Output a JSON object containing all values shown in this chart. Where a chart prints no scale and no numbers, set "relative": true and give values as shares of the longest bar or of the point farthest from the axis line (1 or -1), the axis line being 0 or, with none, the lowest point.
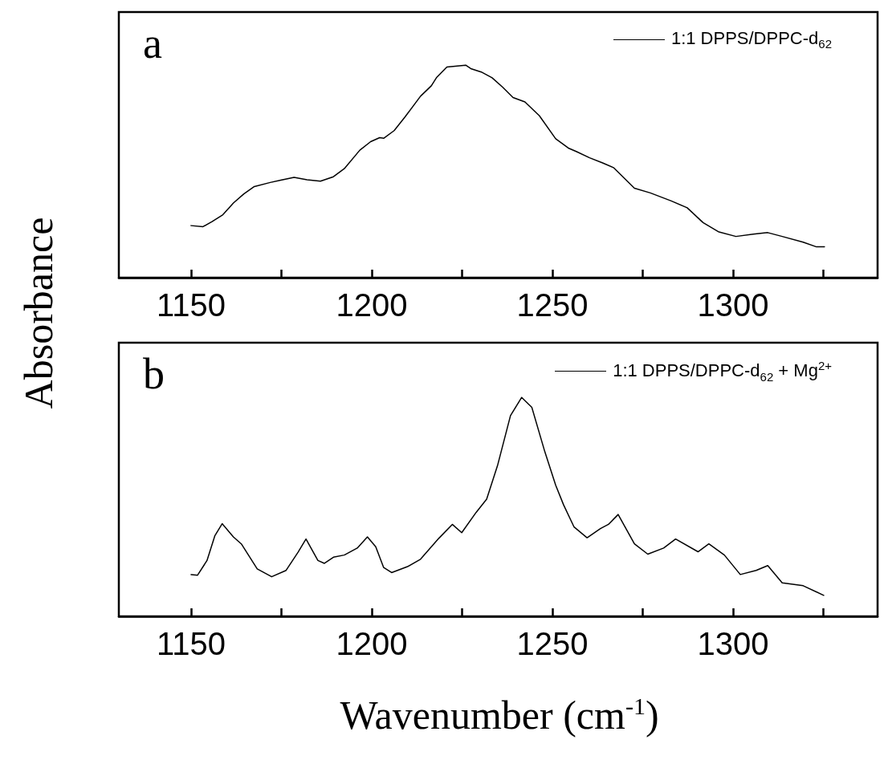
{
  "chart_data": [
    {
      "type": "line",
      "relative": true,
      "ylabel": "Absorbance",
      "annotations": [
        "a"
      ],
      "legend": "top right",
      "marker": "none",
      "line_style": "solid",
      "grid": false,
      "xlim": [
        1130,
        1340
      ],
      "xticks": [
        1150,
        {
          "value": 1175,
          "label": null
        },
        1200,
        {
          "value": 1225,
          "label": null
        },
        1250,
        {
          "value": 1275,
          "label": null
        },
        1300,
        {
          "value": 1325,
          "label": null
        }
      ],
      "series": [
        {
          "name": "1:1 DPPS/DPPC-d$_{62}$",
          "color": "#000000",
          "x": [
            1150,
            1153.3,
            1155.8,
            1158.8,
            1161.7,
            1164.6,
            1167.5,
            1171.9,
            1174.8,
            1178.5,
            1182.1,
            1185.8,
            1189.4,
            1192.4,
            1196.7,
            1199.7,
            1202.2,
            1203.3,
            1206.2,
            1209.2,
            1213.5,
            1216.5,
            1217.9,
            1220.8,
            1226.0,
            1227.4,
            1230.3,
            1233.3,
            1236.2,
            1239.1,
            1242.4,
            1246.4,
            1250.9,
            1254.4,
            1256.6,
            1260.3,
            1263.9,
            1266.9,
            1272.7,
            1277.1,
            1282.9,
            1287.3,
            1291.7,
            1296.1,
            1300.8,
            1305.6,
            1309.6,
            1313.6,
            1319.4,
            1323.1,
            1325.3
          ],
          "values": [
            0.245,
            0.24,
            0.264,
            0.296,
            0.351,
            0.394,
            0.429,
            0.448,
            0.459,
            0.472,
            0.461,
            0.454,
            0.475,
            0.513,
            0.6,
            0.64,
            0.659,
            0.656,
            0.692,
            0.756,
            0.854,
            0.903,
            0.941,
            0.991,
            1.0,
            0.984,
            0.968,
            0.941,
            0.897,
            0.848,
            0.827,
            0.762,
            0.654,
            0.61,
            0.594,
            0.564,
            0.54,
            0.518,
            0.421,
            0.399,
            0.361,
            0.329,
            0.259,
            0.215,
            0.194,
            0.205,
            0.212,
            0.194,
            0.167,
            0.145,
            0.145
          ]
        }
      ]
    },
    {
      "type": "line",
      "relative": true,
      "xlabel": "Wavenumber (cm$^{-1}$)",
      "annotations": [
        "b"
      ],
      "legend": "top right",
      "marker": "none",
      "line_style": "solid",
      "grid": false,
      "xlim": [
        1130,
        1340
      ],
      "xticks": [
        1150,
        {
          "value": 1175,
          "label": null
        },
        1200,
        {
          "value": 1225,
          "label": null
        },
        1250,
        {
          "value": 1275,
          "label": null
        },
        1300,
        {
          "value": 1325,
          "label": null
        }
      ],
      "series": [
        {
          "name": "1:1 DPPS/DPPC-d$_{62}$ + Mg$^{2+}$",
          "color": "#000000",
          "x": [
            1150,
            1151.8,
            1154.4,
            1156.6,
            1158.6,
            1161.7,
            1163.9,
            1168.3,
            1172.3,
            1176.3,
            1179.6,
            1181.8,
            1185.1,
            1186.9,
            1189.4,
            1192.4,
            1196.0,
            1198.8,
            1201.1,
            1203.3,
            1205.5,
            1209.9,
            1213.5,
            1218.6,
            1222.3,
            1224.9,
            1228.9,
            1231.8,
            1234.8,
            1238.4,
            1241.5,
            1244.3,
            1247.9,
            1250.9,
            1253.1,
            1256.0,
            1259.6,
            1263.3,
            1265.5,
            1268.2,
            1272.7,
            1276.4,
            1280.8,
            1284.1,
            1290.3,
            1293.3,
            1297.6,
            1302.0,
            1306.4,
            1309.6,
            1313.6,
            1319.4,
            1325.1
          ],
          "values": [
            0.191,
            0.188,
            0.255,
            0.369,
            0.423,
            0.363,
            0.331,
            0.217,
            0.181,
            0.21,
            0.293,
            0.353,
            0.255,
            0.242,
            0.27,
            0.28,
            0.312,
            0.363,
            0.318,
            0.223,
            0.2,
            0.227,
            0.261,
            0.357,
            0.42,
            0.382,
            0.475,
            0.535,
            0.688,
            0.917,
            1.0,
            0.955,
            0.752,
            0.599,
            0.509,
            0.408,
            0.359,
            0.401,
            0.42,
            0.465,
            0.331,
            0.284,
            0.312,
            0.353,
            0.295,
            0.331,
            0.28,
            0.191,
            0.21,
            0.232,
            0.153,
            0.14,
            0.096
          ]
        }
      ]
    }
  ]
}
